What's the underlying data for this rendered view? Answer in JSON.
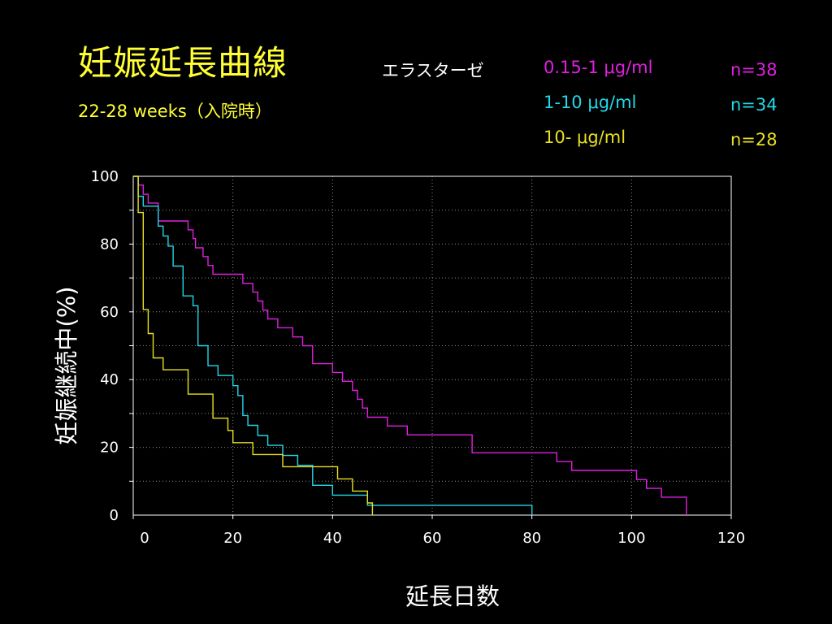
{
  "header": {
    "title": "妊娠延長曲線",
    "subtitle": "22-28 weeks（入院時）",
    "legend_heading": "エラスターゼ"
  },
  "chart_data": {
    "type": "line",
    "title": "妊娠延長曲線",
    "subtitle": "22-28 weeks（入院時）",
    "xlabel": "延長日数",
    "ylabel": "妊娠継続中(%)",
    "xlim": [
      0,
      120
    ],
    "ylim": [
      0,
      100
    ],
    "x_ticks": [
      0,
      20,
      40,
      60,
      80,
      100,
      120
    ],
    "y_ticks": [
      0,
      20,
      40,
      60,
      80,
      100
    ],
    "grid": true,
    "legend_title": "エラスターゼ",
    "legend_position": "top-right",
    "series": [
      {
        "name": "0.15-1 μg/ml",
        "n_label": "n=38",
        "color": "#e020e0",
        "points": [
          [
            0,
            100
          ],
          [
            1,
            100
          ],
          [
            1,
            97.4
          ],
          [
            2,
            97.4
          ],
          [
            2,
            94.7
          ],
          [
            3,
            94.7
          ],
          [
            3,
            92.1
          ],
          [
            5,
            92.1
          ],
          [
            5,
            86.8
          ],
          [
            11,
            86.8
          ],
          [
            11,
            84.2
          ],
          [
            12,
            84.2
          ],
          [
            12,
            81.6
          ],
          [
            12.5,
            81.6
          ],
          [
            12.5,
            78.9
          ],
          [
            14,
            78.9
          ],
          [
            14,
            76.3
          ],
          [
            15,
            76.3
          ],
          [
            15,
            73.7
          ],
          [
            16,
            73.7
          ],
          [
            16,
            71.1
          ],
          [
            22,
            71.1
          ],
          [
            22,
            68.4
          ],
          [
            24,
            68.4
          ],
          [
            24,
            65.8
          ],
          [
            25,
            65.8
          ],
          [
            25,
            63.2
          ],
          [
            26,
            63.2
          ],
          [
            26,
            60.5
          ],
          [
            27,
            60.5
          ],
          [
            27,
            57.9
          ],
          [
            29,
            57.9
          ],
          [
            29,
            55.3
          ],
          [
            32,
            55.3
          ],
          [
            32,
            52.6
          ],
          [
            34,
            52.6
          ],
          [
            34,
            50
          ],
          [
            36,
            50
          ],
          [
            36,
            44.7
          ],
          [
            40,
            44.7
          ],
          [
            40,
            42.1
          ],
          [
            42,
            42.1
          ],
          [
            42,
            39.5
          ],
          [
            44,
            39.5
          ],
          [
            44,
            36.8
          ],
          [
            45,
            36.8
          ],
          [
            45,
            34.2
          ],
          [
            46,
            34.2
          ],
          [
            46,
            31.6
          ],
          [
            47,
            31.6
          ],
          [
            47,
            28.9
          ],
          [
            51,
            28.9
          ],
          [
            51,
            26.3
          ],
          [
            55,
            26.3
          ],
          [
            55,
            23.7
          ],
          [
            68,
            23.7
          ],
          [
            68,
            18.4
          ],
          [
            85,
            18.4
          ],
          [
            85,
            15.8
          ],
          [
            88,
            15.8
          ],
          [
            88,
            13.2
          ],
          [
            101,
            13.2
          ],
          [
            101,
            10.5
          ],
          [
            103,
            10.5
          ],
          [
            103,
            7.9
          ],
          [
            106,
            7.9
          ],
          [
            106,
            5.3
          ],
          [
            111,
            5.3
          ],
          [
            111,
            0
          ]
        ]
      },
      {
        "name": "1-10 μg/ml",
        "n_label": "n=34",
        "color": "#20d8e8",
        "points": [
          [
            0,
            100
          ],
          [
            1,
            100
          ],
          [
            1,
            94.1
          ],
          [
            2,
            94.1
          ],
          [
            2,
            91.2
          ],
          [
            5,
            91.2
          ],
          [
            5,
            85.3
          ],
          [
            6,
            85.3
          ],
          [
            6,
            82.4
          ],
          [
            7,
            82.4
          ],
          [
            7,
            79.4
          ],
          [
            8,
            79.4
          ],
          [
            8,
            73.5
          ],
          [
            10,
            73.5
          ],
          [
            10,
            64.7
          ],
          [
            12,
            64.7
          ],
          [
            12,
            61.8
          ],
          [
            13,
            61.8
          ],
          [
            13,
            50
          ],
          [
            15,
            50
          ],
          [
            15,
            44.1
          ],
          [
            17,
            44.1
          ],
          [
            17,
            41.2
          ],
          [
            20,
            41.2
          ],
          [
            20,
            38.2
          ],
          [
            21,
            38.2
          ],
          [
            21,
            35.3
          ],
          [
            22,
            35.3
          ],
          [
            22,
            29.4
          ],
          [
            23,
            29.4
          ],
          [
            23,
            26.5
          ],
          [
            25,
            26.5
          ],
          [
            25,
            23.5
          ],
          [
            27,
            23.5
          ],
          [
            27,
            20.6
          ],
          [
            30,
            20.6
          ],
          [
            30,
            17.6
          ],
          [
            33,
            17.6
          ],
          [
            33,
            14.7
          ],
          [
            36,
            14.7
          ],
          [
            36,
            8.8
          ],
          [
            40,
            8.8
          ],
          [
            40,
            5.9
          ],
          [
            47,
            5.9
          ],
          [
            47,
            2.9
          ],
          [
            80,
            2.9
          ],
          [
            80,
            0
          ]
        ]
      },
      {
        "name": "10- μg/ml",
        "n_label": "n=28",
        "color": "#e8e020",
        "points": [
          [
            0,
            100
          ],
          [
            1,
            100
          ],
          [
            1,
            89.3
          ],
          [
            2,
            89.3
          ],
          [
            2,
            60.7
          ],
          [
            3,
            60.7
          ],
          [
            3,
            53.6
          ],
          [
            4,
            53.6
          ],
          [
            4,
            46.4
          ],
          [
            6,
            46.4
          ],
          [
            6,
            42.9
          ],
          [
            11,
            42.9
          ],
          [
            11,
            35.7
          ],
          [
            16,
            35.7
          ],
          [
            16,
            28.6
          ],
          [
            19,
            28.6
          ],
          [
            19,
            25
          ],
          [
            20,
            25
          ],
          [
            20,
            21.4
          ],
          [
            24,
            21.4
          ],
          [
            24,
            17.9
          ],
          [
            30,
            17.9
          ],
          [
            30,
            14.3
          ],
          [
            41,
            14.3
          ],
          [
            41,
            10.7
          ],
          [
            44,
            10.7
          ],
          [
            44,
            7.1
          ],
          [
            47,
            7.1
          ],
          [
            47,
            3.6
          ],
          [
            48,
            3.6
          ],
          [
            48,
            0
          ]
        ]
      }
    ]
  }
}
